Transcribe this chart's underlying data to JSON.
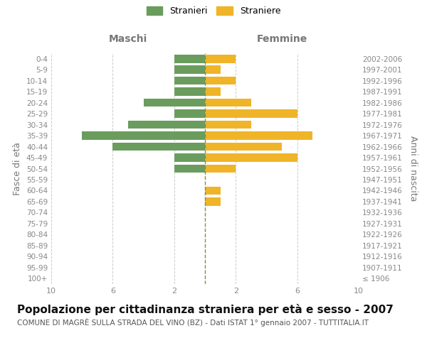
{
  "age_groups": [
    "100+",
    "95-99",
    "90-94",
    "85-89",
    "80-84",
    "75-79",
    "70-74",
    "65-69",
    "60-64",
    "55-59",
    "50-54",
    "45-49",
    "40-44",
    "35-39",
    "30-34",
    "25-29",
    "20-24",
    "15-19",
    "10-14",
    "5-9",
    "0-4"
  ],
  "birth_years": [
    "≤ 1906",
    "1907-1911",
    "1912-1916",
    "1917-1921",
    "1922-1926",
    "1927-1931",
    "1932-1936",
    "1937-1941",
    "1942-1946",
    "1947-1951",
    "1952-1956",
    "1957-1961",
    "1962-1966",
    "1967-1971",
    "1972-1976",
    "1977-1981",
    "1982-1986",
    "1987-1991",
    "1992-1996",
    "1997-2001",
    "2002-2006"
  ],
  "maschi": [
    0,
    0,
    0,
    0,
    0,
    0,
    0,
    0,
    0,
    0,
    2,
    2,
    6,
    8,
    5,
    2,
    4,
    2,
    2,
    2,
    2
  ],
  "femmine": [
    0,
    0,
    0,
    0,
    0,
    0,
    0,
    1,
    1,
    0,
    2,
    6,
    5,
    7,
    3,
    6,
    3,
    1,
    2,
    1,
    2
  ],
  "male_color": "#6a9c5e",
  "female_color": "#f0b429",
  "title": "Popolazione per cittadinanza straniera per età e sesso - 2007",
  "subtitle": "COMUNE DI MAGRÈ SULLA STRADA DEL VINO (BZ) - Dati ISTAT 1° gennaio 2007 - TUTTITALIA.IT",
  "ylabel_left": "Fasce di età",
  "ylabel_right": "Anni di nascita",
  "xlabel_left": "Maschi",
  "xlabel_right": "Femmine",
  "legend_male": "Stranieri",
  "legend_female": "Straniere",
  "xlim": 10,
  "background_color": "#ffffff",
  "grid_color": "#cccccc",
  "title_fontsize": 11,
  "subtitle_fontsize": 7.5,
  "tick_label_color": "#888888",
  "bar_height": 0.75,
  "center_line_color": "#8b8b3a",
  "header_color": "#777777"
}
